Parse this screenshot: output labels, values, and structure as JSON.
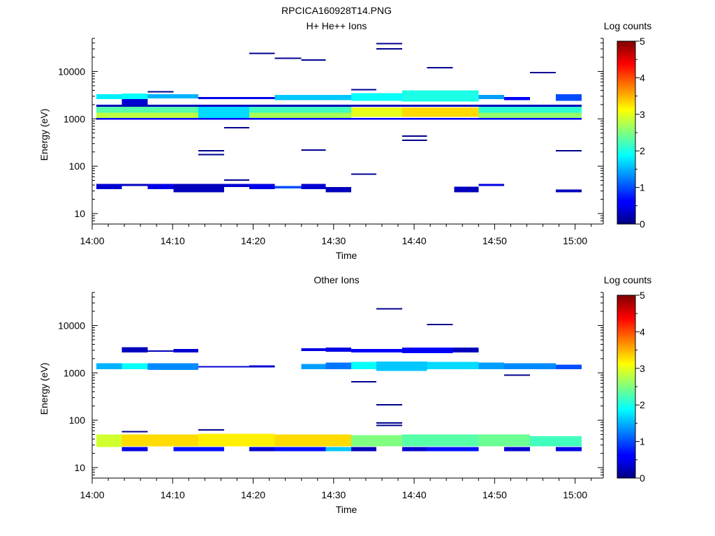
{
  "page_title": "RPCICA160928T14.PNG",
  "chart_data": [
    {
      "type": "heatmap",
      "title": "H+ He++ Ions",
      "xlabel": "Time",
      "ylabel": "Energy (eV)",
      "y_scale": "log",
      "ylim": [
        6,
        50000
      ],
      "xlim_minutes": [
        0,
        63.5
      ],
      "x_ticks": [
        "14:00",
        "14:10",
        "14:20",
        "14:30",
        "14:40",
        "14:50",
        "15:00"
      ],
      "y_ticks": [
        "10",
        "100",
        "1000",
        "10000"
      ],
      "colorbar": {
        "label": "Log counts",
        "min": 0,
        "max": 5,
        "ticks": [
          "0",
          "1",
          "2",
          "3",
          "4",
          "5"
        ]
      },
      "cells": [
        {
          "t0": 0.5,
          "t1": 3.7,
          "e0": 2600,
          "e1": 3300,
          "v": 1.8
        },
        {
          "t0": 3.7,
          "t1": 6.9,
          "e0": 2600,
          "e1": 3400,
          "v": 1.9
        },
        {
          "t0": 3.7,
          "t1": 6.9,
          "e0": 2000,
          "e1": 2600,
          "v": 0.4
        },
        {
          "t0": 6.9,
          "t1": 13.2,
          "e0": 2700,
          "e1": 3300,
          "v": 1.5
        },
        {
          "t0": 13.2,
          "t1": 22.7,
          "e0": 2600,
          "e1": 2900,
          "v": 0.5
        },
        {
          "t0": 22.7,
          "t1": 32.2,
          "e0": 2500,
          "e1": 3200,
          "v": 1.6
        },
        {
          "t0": 32.2,
          "t1": 38.5,
          "e0": 2400,
          "e1": 3500,
          "v": 1.9
        },
        {
          "t0": 38.5,
          "t1": 48.0,
          "e0": 2300,
          "e1": 4000,
          "v": 2.0
        },
        {
          "t0": 48.0,
          "t1": 51.2,
          "e0": 2600,
          "e1": 3200,
          "v": 1.4
        },
        {
          "t0": 51.2,
          "t1": 54.4,
          "e0": 2500,
          "e1": 2900,
          "v": 0.6
        },
        {
          "t0": 57.6,
          "t1": 60.8,
          "e0": 2400,
          "e1": 3300,
          "v": 1.0
        },
        {
          "t0": 0.5,
          "t1": 60.8,
          "e0": 1800,
          "e1": 2000,
          "v": 0.3
        },
        {
          "t0": 0.5,
          "t1": 13.2,
          "e0": 1350,
          "e1": 1800,
          "v": 2.3
        },
        {
          "t0": 0.5,
          "t1": 13.2,
          "e0": 1050,
          "e1": 1350,
          "v": 2.8
        },
        {
          "t0": 13.2,
          "t1": 19.5,
          "e0": 1050,
          "e1": 1800,
          "v": 1.7
        },
        {
          "t0": 19.5,
          "t1": 32.2,
          "e0": 1350,
          "e1": 1800,
          "v": 2.2
        },
        {
          "t0": 19.5,
          "t1": 32.2,
          "e0": 1050,
          "e1": 1350,
          "v": 2.7
        },
        {
          "t0": 32.2,
          "t1": 38.5,
          "e0": 1100,
          "e1": 1750,
          "v": 3.0
        },
        {
          "t0": 38.5,
          "t1": 48.0,
          "e0": 1100,
          "e1": 1750,
          "v": 3.3
        },
        {
          "t0": 48.0,
          "t1": 60.8,
          "e0": 1350,
          "e1": 1800,
          "v": 2.1
        },
        {
          "t0": 48.0,
          "t1": 60.8,
          "e0": 1050,
          "e1": 1350,
          "v": 2.6
        },
        {
          "t0": 0.5,
          "t1": 60.8,
          "e0": 950,
          "e1": 1050,
          "v": 0.6
        },
        {
          "t0": 0.5,
          "t1": 3.7,
          "e0": 33,
          "e1": 42,
          "v": 0.4
        },
        {
          "t0": 3.7,
          "t1": 6.9,
          "e0": 38,
          "e1": 42,
          "v": 0.3
        },
        {
          "t0": 6.9,
          "t1": 10.1,
          "e0": 33,
          "e1": 42,
          "v": 0.5
        },
        {
          "t0": 10.1,
          "t1": 16.4,
          "e0": 28,
          "e1": 42,
          "v": 0.3
        },
        {
          "t0": 16.4,
          "t1": 19.5,
          "e0": 36,
          "e1": 42,
          "v": 0.4
        },
        {
          "t0": 19.5,
          "t1": 22.7,
          "e0": 33,
          "e1": 42,
          "v": 0.5
        },
        {
          "t0": 22.7,
          "t1": 26.0,
          "e0": 34,
          "e1": 38,
          "v": 1.0
        },
        {
          "t0": 26.0,
          "t1": 29.0,
          "e0": 33,
          "e1": 42,
          "v": 0.4
        },
        {
          "t0": 29.0,
          "t1": 32.2,
          "e0": 28,
          "e1": 36,
          "v": 0.3
        },
        {
          "t0": 45.0,
          "t1": 48.0,
          "e0": 28,
          "e1": 37,
          "v": 0.3
        },
        {
          "t0": 48.0,
          "t1": 51.2,
          "e0": 38,
          "e1": 42,
          "v": 0.5
        },
        {
          "t0": 57.6,
          "t1": 60.8,
          "e0": 28,
          "e1": 32,
          "v": 0.3
        }
      ],
      "segments": [
        {
          "t0": 19.5,
          "t1": 22.7,
          "e": 24000
        },
        {
          "t0": 22.7,
          "t1": 26.0,
          "e": 19000
        },
        {
          "t0": 26.0,
          "t1": 29.0,
          "e": 17500
        },
        {
          "t0": 35.3,
          "t1": 38.5,
          "e": 39000
        },
        {
          "t0": 35.3,
          "t1": 38.5,
          "e": 30000
        },
        {
          "t0": 41.6,
          "t1": 44.8,
          "e": 12000
        },
        {
          "t0": 54.4,
          "t1": 57.6,
          "e": 9500
        },
        {
          "t0": 6.9,
          "t1": 10.1,
          "e": 3700
        },
        {
          "t0": 32.2,
          "t1": 35.3,
          "e": 4100
        },
        {
          "t0": 13.2,
          "t1": 16.4,
          "e": 210
        },
        {
          "t0": 13.2,
          "t1": 16.4,
          "e": 175
        },
        {
          "t0": 16.4,
          "t1": 19.5,
          "e": 650
        },
        {
          "t0": 26.0,
          "t1": 29.0,
          "e": 220
        },
        {
          "t0": 32.2,
          "t1": 35.3,
          "e": 68
        },
        {
          "t0": 38.5,
          "t1": 41.6,
          "e": 430
        },
        {
          "t0": 38.5,
          "t1": 41.6,
          "e": 350
        },
        {
          "t0": 57.6,
          "t1": 60.8,
          "e": 210
        },
        {
          "t0": 16.4,
          "t1": 19.5,
          "e": 51
        }
      ]
    },
    {
      "type": "heatmap",
      "title": "Other Ions",
      "xlabel": "Time",
      "ylabel": "Energy (eV)",
      "y_scale": "log",
      "ylim": [
        6,
        50000
      ],
      "xlim_minutes": [
        0,
        63.5
      ],
      "x_ticks": [
        "14:00",
        "14:10",
        "14:20",
        "14:30",
        "14:40",
        "14:50",
        "15:00"
      ],
      "y_ticks": [
        "10",
        "100",
        "1000",
        "10000"
      ],
      "colorbar": {
        "label": "Log counts",
        "min": 0,
        "max": 5,
        "ticks": [
          "0",
          "1",
          "2",
          "3",
          "4",
          "5"
        ]
      },
      "cells": [
        {
          "t0": 3.7,
          "t1": 6.9,
          "e0": 2700,
          "e1": 3500,
          "v": 0.3
        },
        {
          "t0": 6.9,
          "t1": 10.1,
          "e0": 2800,
          "e1": 3000,
          "v": 0.3
        },
        {
          "t0": 10.1,
          "t1": 13.2,
          "e0": 2700,
          "e1": 3200,
          "v": 0.4
        },
        {
          "t0": 26.0,
          "t1": 29.0,
          "e0": 2900,
          "e1": 3300,
          "v": 0.5
        },
        {
          "t0": 29.0,
          "t1": 32.2,
          "e0": 2800,
          "e1": 3400,
          "v": 0.5
        },
        {
          "t0": 32.2,
          "t1": 38.5,
          "e0": 2700,
          "e1": 3200,
          "v": 0.6
        },
        {
          "t0": 38.5,
          "t1": 44.8,
          "e0": 2600,
          "e1": 3400,
          "v": 0.6
        },
        {
          "t0": 44.8,
          "t1": 48.0,
          "e0": 2700,
          "e1": 3400,
          "v": 0.3
        },
        {
          "t0": 0.5,
          "t1": 3.7,
          "e0": 1200,
          "e1": 1600,
          "v": 1.5
        },
        {
          "t0": 3.7,
          "t1": 6.9,
          "e0": 1200,
          "e1": 1600,
          "v": 1.9
        },
        {
          "t0": 6.9,
          "t1": 13.2,
          "e0": 1150,
          "e1": 1600,
          "v": 1.3
        },
        {
          "t0": 13.2,
          "t1": 19.5,
          "e0": 1300,
          "e1": 1400,
          "v": 0.4
        },
        {
          "t0": 19.5,
          "t1": 22.7,
          "e0": 1300,
          "e1": 1450,
          "v": 0.4
        },
        {
          "t0": 26.0,
          "t1": 29.0,
          "e0": 1200,
          "e1": 1550,
          "v": 1.4
        },
        {
          "t0": 29.0,
          "t1": 32.2,
          "e0": 1200,
          "e1": 1650,
          "v": 1.2
        },
        {
          "t0": 32.2,
          "t1": 35.3,
          "e0": 1200,
          "e1": 1700,
          "v": 1.9
        },
        {
          "t0": 35.3,
          "t1": 41.6,
          "e0": 1100,
          "e1": 1750,
          "v": 1.6
        },
        {
          "t0": 41.6,
          "t1": 48.0,
          "e0": 1200,
          "e1": 1700,
          "v": 1.7
        },
        {
          "t0": 48.0,
          "t1": 51.2,
          "e0": 1200,
          "e1": 1650,
          "v": 1.4
        },
        {
          "t0": 51.2,
          "t1": 57.6,
          "e0": 1200,
          "e1": 1600,
          "v": 1.3
        },
        {
          "t0": 57.6,
          "t1": 60.8,
          "e0": 1200,
          "e1": 1500,
          "v": 1.0
        },
        {
          "t0": 0.5,
          "t1": 3.7,
          "e0": 27,
          "e1": 50,
          "v": 2.9
        },
        {
          "t0": 3.7,
          "t1": 13.2,
          "e0": 28,
          "e1": 50,
          "v": 3.3
        },
        {
          "t0": 13.2,
          "t1": 22.7,
          "e0": 28,
          "e1": 52,
          "v": 3.2
        },
        {
          "t0": 22.7,
          "t1": 32.2,
          "e0": 28,
          "e1": 50,
          "v": 3.3
        },
        {
          "t0": 32.2,
          "t1": 38.5,
          "e0": 28,
          "e1": 48,
          "v": 2.5
        },
        {
          "t0": 38.5,
          "t1": 48.0,
          "e0": 28,
          "e1": 50,
          "v": 2.3
        },
        {
          "t0": 48.0,
          "t1": 54.4,
          "e0": 28,
          "e1": 50,
          "v": 2.4
        },
        {
          "t0": 54.4,
          "t1": 60.8,
          "e0": 28,
          "e1": 46,
          "v": 2.2
        },
        {
          "t0": 3.7,
          "t1": 6.9,
          "e0": 22,
          "e1": 27,
          "v": 0.5
        },
        {
          "t0": 10.1,
          "t1": 16.4,
          "e0": 22,
          "e1": 27,
          "v": 0.7
        },
        {
          "t0": 19.5,
          "t1": 22.7,
          "e0": 22,
          "e1": 27,
          "v": 0.4
        },
        {
          "t0": 22.7,
          "t1": 29.0,
          "e0": 22,
          "e1": 27,
          "v": 0.7
        },
        {
          "t0": 29.0,
          "t1": 32.2,
          "e0": 22,
          "e1": 27,
          "v": 1.6
        },
        {
          "t0": 32.2,
          "t1": 35.3,
          "e0": 22,
          "e1": 27,
          "v": 0.3
        },
        {
          "t0": 38.5,
          "t1": 41.6,
          "e0": 22,
          "e1": 27,
          "v": 0.4
        },
        {
          "t0": 41.6,
          "t1": 48.0,
          "e0": 22,
          "e1": 27,
          "v": 0.7
        },
        {
          "t0": 51.2,
          "t1": 54.4,
          "e0": 22,
          "e1": 27,
          "v": 0.4
        },
        {
          "t0": 57.6,
          "t1": 60.8,
          "e0": 22,
          "e1": 27,
          "v": 0.5
        }
      ],
      "segments": [
        {
          "t0": 35.3,
          "t1": 38.5,
          "e": 22500
        },
        {
          "t0": 41.6,
          "t1": 44.8,
          "e": 10500
        },
        {
          "t0": 32.2,
          "t1": 35.3,
          "e": 650
        },
        {
          "t0": 51.2,
          "t1": 54.4,
          "e": 900
        },
        {
          "t0": 35.3,
          "t1": 38.5,
          "e": 210
        },
        {
          "t0": 35.3,
          "t1": 38.5,
          "e": 88
        },
        {
          "t0": 35.3,
          "t1": 38.5,
          "e": 78
        },
        {
          "t0": 3.7,
          "t1": 6.9,
          "e": 57
        },
        {
          "t0": 13.2,
          "t1": 16.4,
          "e": 62
        }
      ]
    }
  ]
}
